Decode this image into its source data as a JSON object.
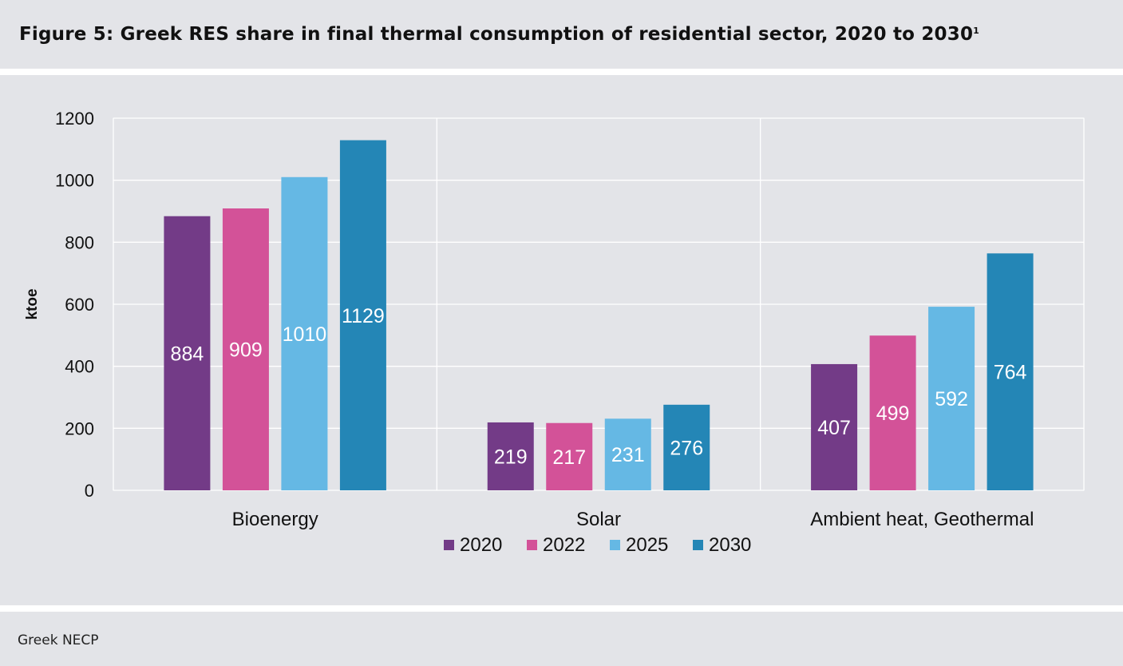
{
  "header": {
    "title": "Figure 5: Greek RES share in final thermal consumption of residential sector, 2020 to 2030",
    "title_sup": "1"
  },
  "footer": {
    "source": "Greek NECP"
  },
  "chart_data": {
    "type": "bar",
    "categories": [
      "Bioenergy",
      "Solar",
      "Ambient heat, Geothermal"
    ],
    "series": [
      {
        "name": "2020",
        "color": "#733b87",
        "values": [
          884,
          219,
          407
        ]
      },
      {
        "name": "2022",
        "color": "#d35298",
        "values": [
          909,
          217,
          499
        ]
      },
      {
        "name": "2025",
        "color": "#65b8e4",
        "values": [
          1010,
          231,
          592
        ]
      },
      {
        "name": "2030",
        "color": "#2486b6",
        "values": [
          1129,
          276,
          764
        ]
      }
    ],
    "ylabel": "ktoe",
    "xlabel": "",
    "ylim": [
      0,
      1200
    ],
    "yticks": [
      0,
      200,
      400,
      600,
      800,
      1000,
      1200
    ],
    "grid": true,
    "legend": "bottom-center",
    "data_labels": true
  }
}
